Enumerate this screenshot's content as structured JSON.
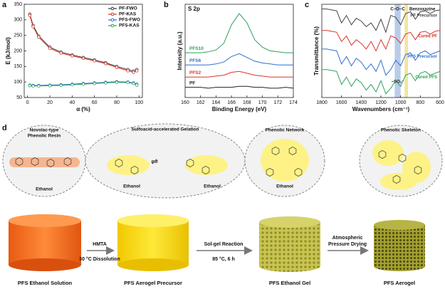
{
  "panel_labels": [
    "a",
    "b",
    "c",
    "d"
  ],
  "chart_data": [
    {
      "type": "line",
      "x_label": "α (%)",
      "y_label": "E (kJ/mol)",
      "x": [
        2,
        5,
        10,
        20,
        30,
        40,
        50,
        60,
        70,
        80,
        90,
        95,
        98
      ],
      "xlim": [
        -3,
        103
      ],
      "xticks": [
        0,
        20,
        40,
        60,
        80,
        100
      ],
      "ylim": [
        50,
        350
      ],
      "yticks": [
        50,
        100,
        150,
        200,
        250,
        300,
        350
      ],
      "markers": true,
      "legend": "upper right",
      "series": [
        {
          "name": "PF-FWO",
          "color": "#3a3a3a",
          "values": [
            318,
            282,
            248,
            212,
            196,
            187,
            179,
            171,
            162,
            150,
            140,
            135,
            140
          ]
        },
        {
          "name": "PF-KAS",
          "color": "#d9342b",
          "values": [
            314,
            278,
            244,
            208,
            193,
            184,
            176,
            168,
            159,
            147,
            136,
            131,
            136
          ]
        },
        {
          "name": "PFS-FWO",
          "color": "#2f6fd0",
          "values": [
            90,
            89,
            89,
            90,
            91,
            93,
            95,
            97,
            99,
            101,
            100,
            97,
            93
          ]
        },
        {
          "name": "PFS-KAS",
          "color": "#2aa35a",
          "values": [
            88,
            87,
            87,
            88,
            89,
            91,
            93,
            95,
            97,
            99,
            98,
            95,
            90
          ]
        }
      ]
    },
    {
      "type": "line",
      "title": "S 2p",
      "x_label": "Binding Energy (eV)",
      "y_label": "Intensity (a.u.)",
      "x": [
        160,
        161,
        162,
        163,
        164,
        165,
        166,
        167,
        168,
        169,
        170,
        171,
        172,
        173,
        174
      ],
      "xlim": [
        160,
        174
      ],
      "xticks": [
        160,
        162,
        164,
        166,
        168,
        170,
        172,
        174
      ],
      "ylim": [
        0,
        100
      ],
      "legend": "inline-left",
      "series": [
        {
          "name": "PF",
          "color": "#222222",
          "values": [
            11,
            11,
            11,
            10,
            11,
            11,
            11,
            12,
            12,
            11,
            11,
            10,
            10,
            11,
            10
          ]
        },
        {
          "name": "PFS2",
          "color": "#d9342b",
          "values": [
            22,
            22,
            22,
            22,
            23,
            24,
            27,
            28,
            26,
            24,
            23,
            22,
            22,
            22,
            22
          ]
        },
        {
          "name": "PFS6",
          "color": "#2f6fd0",
          "values": [
            35,
            35,
            35,
            35,
            36,
            38,
            44,
            47,
            43,
            39,
            37,
            36,
            35,
            35,
            35
          ]
        },
        {
          "name": "PFS10",
          "color": "#2aa35a",
          "values": [
            48,
            48,
            48,
            49,
            51,
            58,
            78,
            90,
            80,
            62,
            54,
            50,
            49,
            48,
            48
          ]
        }
      ]
    },
    {
      "type": "line",
      "x_label": "Wavenumbers (cm⁻¹)",
      "y_label": "Transmittance (%)",
      "x": [
        1800,
        1750,
        1700,
        1650,
        1600,
        1550,
        1500,
        1450,
        1400,
        1350,
        1300,
        1250,
        1200,
        1150,
        1100,
        1050,
        1000,
        950,
        900,
        850,
        800,
        750,
        700,
        650,
        600
      ],
      "xlim": [
        1800,
        600
      ],
      "xticks": [
        1800,
        1600,
        1400,
        1200,
        1000,
        800,
        600
      ],
      "ylim": [
        0,
        100
      ],
      "legend": "inline-right",
      "bands": [
        {
          "from": 1060,
          "to": 1000,
          "color": "#b9cdea",
          "label": "C−O−C"
        },
        {
          "from": 960,
          "to": 925,
          "color": "#f3e4a2",
          "label": "Benzoxazine"
        }
      ],
      "annotations": [
        {
          "text": "−SO₃⁻",
          "x": 1030
        }
      ],
      "series": [
        {
          "name": "PF Precursor",
          "color": "#444444",
          "values": [
            95,
            95,
            94,
            93,
            80,
            88,
            78,
            85,
            82,
            76,
            80,
            72,
            84,
            70,
            88,
            86,
            78,
            90,
            92,
            84,
            92,
            93,
            90,
            93,
            94
          ]
        },
        {
          "name": "Cured PF",
          "color": "#d9342b",
          "values": [
            72,
            72,
            71,
            70,
            60,
            66,
            56,
            62,
            58,
            52,
            60,
            50,
            62,
            52,
            66,
            64,
            58,
            68,
            70,
            62,
            70,
            71,
            68,
            71,
            72
          ]
        },
        {
          "name": "PFS Precursor",
          "color": "#2f6fd0",
          "values": [
            52,
            52,
            51,
            50,
            36,
            44,
            34,
            42,
            38,
            30,
            36,
            28,
            40,
            24,
            30,
            40,
            34,
            46,
            48,
            40,
            48,
            50,
            46,
            48,
            50
          ]
        },
        {
          "name": "Cured PFS",
          "color": "#2aa35a",
          "values": [
            30,
            30,
            29,
            28,
            14,
            22,
            12,
            20,
            16,
            8,
            14,
            6,
            18,
            4,
            10,
            18,
            12,
            24,
            26,
            18,
            26,
            28,
            24,
            26,
            28
          ]
        }
      ]
    }
  ],
  "diagram": {
    "bubbles": [
      {
        "title": [
          "Novolac-type",
          "Phenolic Resin"
        ],
        "solvent": [
          "Ethanol"
        ]
      },
      {
        "title": [
          "Sulfoacid-accelerated Gelation"
        ],
        "solvent": [
          "Ethanol",
          "Ethanol"
        ]
      },
      {
        "title": [
          "Phenolic Network"
        ],
        "solvent": [
          "Ethanol"
        ]
      },
      {
        "title": [
          "Phenolic Skeleton"
        ],
        "solvent": []
      }
    ],
    "steps": [
      "PFS Ethanol Solution",
      "PFS Aerogel Precursor",
      "PFS Ethanol Gel",
      "PFS Aerogel"
    ],
    "arrows": [
      {
        "above": [
          "HMTA"
        ],
        "below": [
          "30 °C Dissolution"
        ]
      },
      {
        "above": [
          "Sol-gel Reaction"
        ],
        "below": [
          "85 °C, 6 h"
        ]
      },
      {
        "above": [
          "Atmospheric",
          "Pressure Drying"
        ],
        "below": []
      }
    ]
  }
}
